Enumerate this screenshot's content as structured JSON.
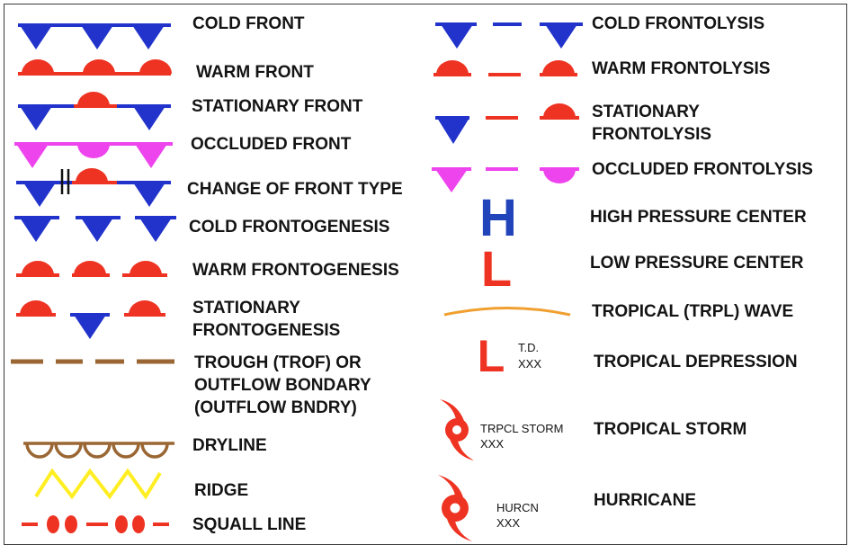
{
  "colors": {
    "cold": "#2233cc",
    "warm": "#ee3322",
    "occluded": "#ee44ee",
    "trough": "#9a6633",
    "ridge": "#ffee22",
    "tropical_wave": "#f0a030",
    "high": "#2244bb",
    "low": "#ee3322"
  },
  "legend": {
    "cold_front": "COLD FRONT",
    "warm_front": "WARM FRONT",
    "stationary_front": "STATIONARY FRONT",
    "occluded_front": "OCCLUDED FRONT",
    "change_of_front_type": "CHANGE OF FRONT TYPE",
    "cold_frontogenesis": "COLD FRONTOGENESIS",
    "warm_frontogenesis": "WARM FRONTOGENESIS",
    "stationary_frontogenesis_1": "STATIONARY",
    "stationary_frontogenesis_2": "FRONTOGENESIS",
    "trough_1": "TROUGH (TROF) OR",
    "trough_2": "OUTFLOW BONDARY",
    "trough_3": "(OUTFLOW BNDRY)",
    "dryline": "DRYLINE",
    "ridge": "RIDGE",
    "squall_line": "SQUALL LINE",
    "cold_frontolysis": "COLD FRONTOLYSIS",
    "warm_frontolysis": "WARM FRONTOLYSIS",
    "stationary_frontolysis_1": "STATIONARY",
    "stationary_frontolysis_2": "FRONTOLYSIS",
    "occluded_frontolysis": "OCCLUDED FRONTOLYSIS",
    "high_pressure_center": "HIGH PRESSURE CENTER",
    "low_pressure_center": "LOW PRESSURE CENTER",
    "tropical_wave": "TROPICAL (TRPL) WAVE",
    "tropical_depression": "TROPICAL DEPRESSION",
    "tropical_storm": "TROPICAL STORM",
    "hurricane": "HURRICANE"
  },
  "symbols": {
    "high_letter": "H",
    "low_letter": "L",
    "td_letter": "L",
    "td_tag": "T.D.",
    "td_code": "XXX",
    "storm_tag": "TRPCL STORM",
    "storm_code": "XXX",
    "hurricane_tag": "HURCN",
    "hurricane_code": "XXX"
  }
}
